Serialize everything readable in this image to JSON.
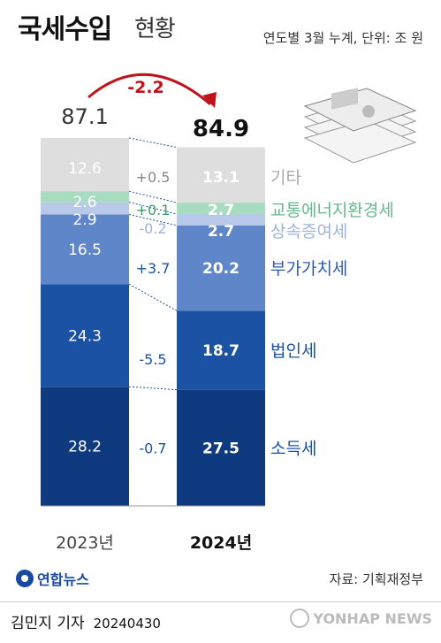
{
  "header": {
    "title_main": "국세수입",
    "title_sub": "현황",
    "unit": "연도별 3월 누계, 단위: 조 원"
  },
  "chart_data": {
    "type": "bar",
    "stacked": true,
    "categories": [
      "2023년",
      "2024년"
    ],
    "totals": [
      "87.1",
      "84.9"
    ],
    "total_change": "-2.2",
    "series": [
      {
        "name": "소득세",
        "values": [
          28.2,
          27.5
        ],
        "change": "-0.7"
      },
      {
        "name": "법인세",
        "values": [
          24.3,
          18.7
        ],
        "change": "-5.5"
      },
      {
        "name": "부가가치세",
        "values": [
          16.5,
          20.2
        ],
        "change": "+3.7"
      },
      {
        "name": "상속증여세",
        "values": [
          2.9,
          2.7
        ],
        "change": "-0.2"
      },
      {
        "name": "교통에너지환경세",
        "values": [
          2.6,
          2.7
        ],
        "change": "+0.1"
      },
      {
        "name": "기타",
        "values": [
          12.6,
          13.1
        ],
        "change": "+0.5"
      }
    ],
    "value_labels": [
      [
        "28.2",
        "24.3",
        "16.5",
        "2.9",
        "2.6",
        "12.6"
      ],
      [
        "27.5",
        "18.7",
        "20.2",
        "2.7",
        "2.7",
        "13.1"
      ]
    ],
    "colors": {
      "income_tax": "#0f3a80",
      "corporate_tax": "#1b52a3",
      "vat": "#5e86c8",
      "inheritance_tax": "#b8c8e8",
      "energy_tax": "#a8dcc0",
      "other": "#dedede",
      "change_down": "#c0141c"
    },
    "legend_colors": [
      "#1b52a3",
      "#1b52a3",
      "#2d5cae",
      "#9fb3dc",
      "#66b98f",
      "#aaaaaa"
    ]
  },
  "footer": {
    "logo": "연합뉴스",
    "source": "자료: 기획재정부",
    "byline": "김민지 기자",
    "date": "20240430",
    "watermark": "YONHAP NEWS"
  }
}
